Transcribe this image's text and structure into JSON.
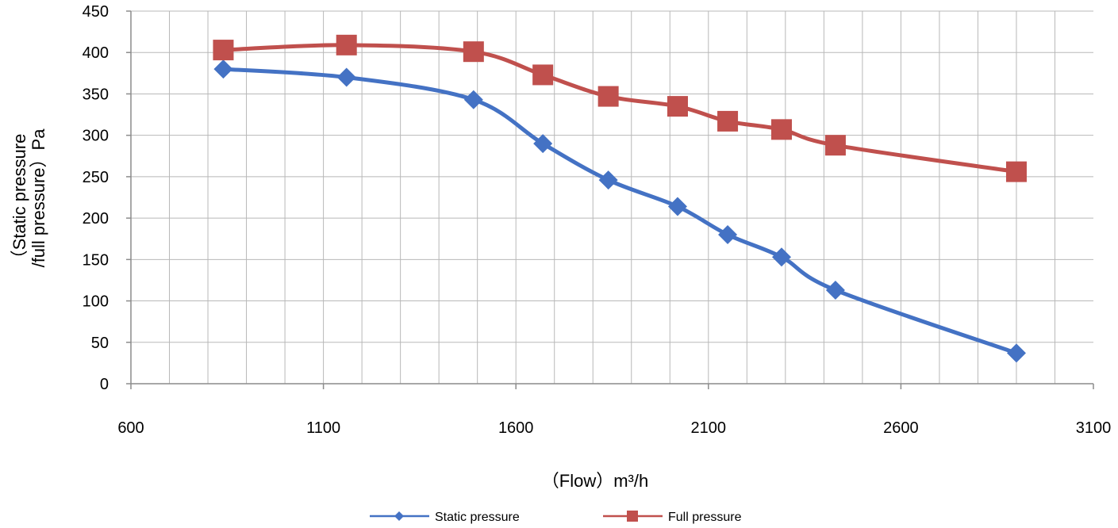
{
  "chart_data": {
    "type": "line",
    "title": "",
    "xlabel": "（Flow）m³/h",
    "ylabel_lines": [
      "（Static pressure",
      "/full pressure）Pa"
    ],
    "xlim": [
      600,
      3100
    ],
    "ylim": [
      0,
      450
    ],
    "x_ticks": [
      600,
      1100,
      1600,
      2100,
      2600,
      3100
    ],
    "y_ticks": [
      0,
      50,
      100,
      150,
      200,
      250,
      300,
      350,
      400,
      450
    ],
    "grid": true,
    "legend_position": "bottom",
    "series": [
      {
        "name": "Static pressure",
        "color": "#4472C4",
        "marker": "diamond",
        "x": [
          840,
          1160,
          1490,
          1670,
          1840,
          2020,
          2150,
          2290,
          2430,
          2900
        ],
        "y": [
          380,
          370,
          343,
          290,
          246,
          214,
          180,
          153,
          113,
          37
        ]
      },
      {
        "name": "Full pressure",
        "color": "#C0504D",
        "marker": "square",
        "x": [
          840,
          1160,
          1490,
          1670,
          1840,
          2020,
          2150,
          2290,
          2430,
          2900
        ],
        "y": [
          403,
          409,
          401,
          373,
          347,
          335,
          317,
          307,
          288,
          256
        ]
      }
    ]
  }
}
